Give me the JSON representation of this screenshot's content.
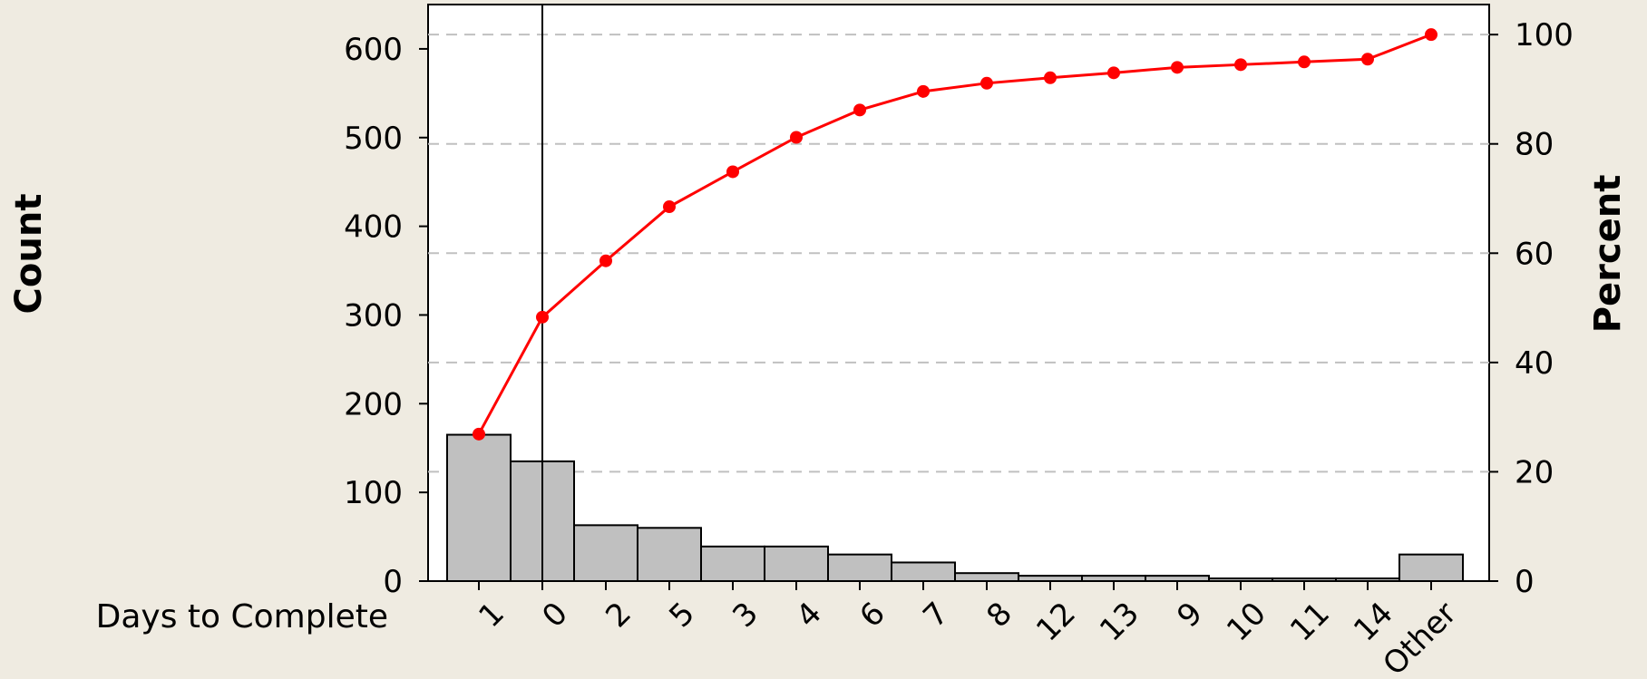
{
  "chart_data": {
    "type": "bar",
    "subtype": "pareto",
    "xlabel": "Days to Complete",
    "ylabel": "Count",
    "ylabel_right": "Percent",
    "categories": [
      "1",
      "0",
      "2",
      "5",
      "3",
      "4",
      "6",
      "7",
      "8",
      "12",
      "13",
      "9",
      "10",
      "11",
      "14",
      "Other"
    ],
    "series": [
      {
        "values": [
          165,
          135,
          63,
          60,
          39,
          39,
          30,
          21,
          9,
          6,
          6,
          6,
          3,
          3,
          3,
          30
        ]
      },
      {
        "type": "line",
        "axis": "right",
        "values": [
          26.9,
          48.3,
          58.6,
          68.5,
          74.9,
          81.2,
          86.2,
          89.6,
          91.1,
          92.1,
          93.0,
          94.0,
          94.5,
          95.0,
          95.5,
          100.0
        ]
      }
    ],
    "ylim": [
      0,
      650
    ],
    "ylim_right": [
      0,
      105.5
    ],
    "yticks": [
      0,
      100,
      200,
      300,
      400,
      500,
      600
    ],
    "yticks_right": [
      0,
      20,
      40,
      60,
      80,
      100
    ],
    "reference_line_category": "0",
    "grid": "horizontal dashed",
    "colors": {
      "bar": "#c0c0c0",
      "line": "#ff0000",
      "grid": "#c0c0c0",
      "background": "#efebe1",
      "plot": "#ffffff"
    }
  }
}
